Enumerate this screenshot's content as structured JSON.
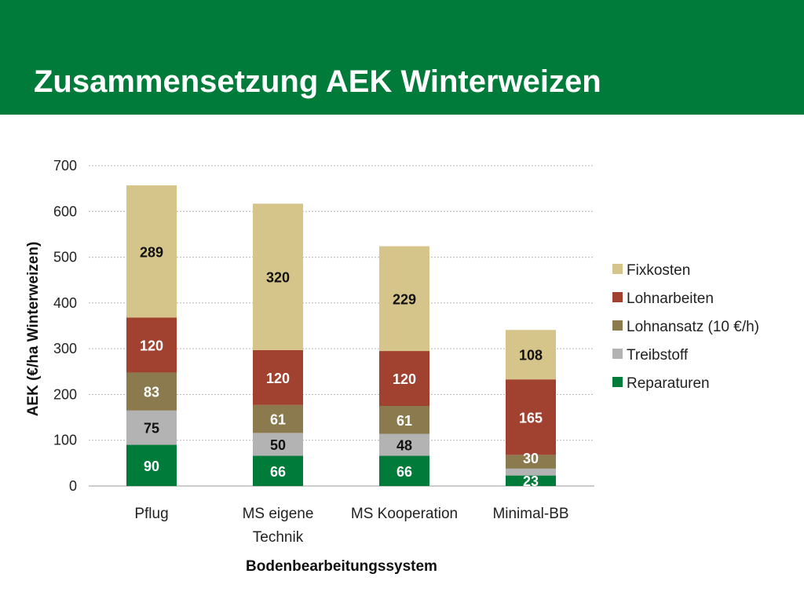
{
  "slide": {
    "title": "Zusammensetzung AEK Winterweizen"
  },
  "colors": {
    "header_green": "#007b3a"
  },
  "chart_data": {
    "type": "bar",
    "stacked": true,
    "categories": [
      "Pflug",
      "MS eigene Technik",
      "MS Kooperation",
      "Minimal-BB"
    ],
    "category_lines": [
      [
        "Pflug"
      ],
      [
        "MS eigene",
        "Technik"
      ],
      [
        "MS Kooperation"
      ],
      [
        "Minimal-BB"
      ]
    ],
    "series": [
      {
        "name": "Reparaturen",
        "color": "#007b3a",
        "label_color": "#ffffff",
        "values": [
          90,
          66,
          66,
          23
        ],
        "labels": [
          "90",
          "66",
          "66",
          "23"
        ]
      },
      {
        "name": "Treibstoff",
        "color": "#b3b3b3",
        "label_color": "#111111",
        "values": [
          75,
          50,
          48,
          15
        ],
        "labels": [
          "75",
          "50",
          "48",
          ""
        ]
      },
      {
        "name": "Lohnansatz (10 €/h)",
        "color": "#8b7a4e",
        "label_color": "#ffffff",
        "values": [
          83,
          61,
          61,
          30
        ],
        "labels": [
          "83",
          "61",
          "61",
          "30"
        ]
      },
      {
        "name": "Lohnarbeiten",
        "color": "#a0422f",
        "label_color": "#ffffff",
        "values": [
          120,
          120,
          120,
          165
        ],
        "labels": [
          "120",
          "120",
          "120",
          "165"
        ]
      },
      {
        "name": "Fixkosten",
        "color": "#d6c58a",
        "label_color": "#111111",
        "values": [
          289,
          320,
          229,
          108
        ],
        "labels": [
          "289",
          "320",
          "229",
          "108"
        ]
      }
    ],
    "legend_order": [
      "Fixkosten",
      "Lohnarbeiten",
      "Lohnansatz (10 €/h)",
      "Treibstoff",
      "Reparaturen"
    ],
    "legend_position": "right",
    "xlabel": "Bodenbearbeitungssystem",
    "ylabel": "AEK (€/ha Winterweizen)",
    "ylim": [
      0,
      700
    ],
    "yticks": [
      0,
      100,
      200,
      300,
      400,
      500,
      600,
      700
    ],
    "grid": true
  }
}
